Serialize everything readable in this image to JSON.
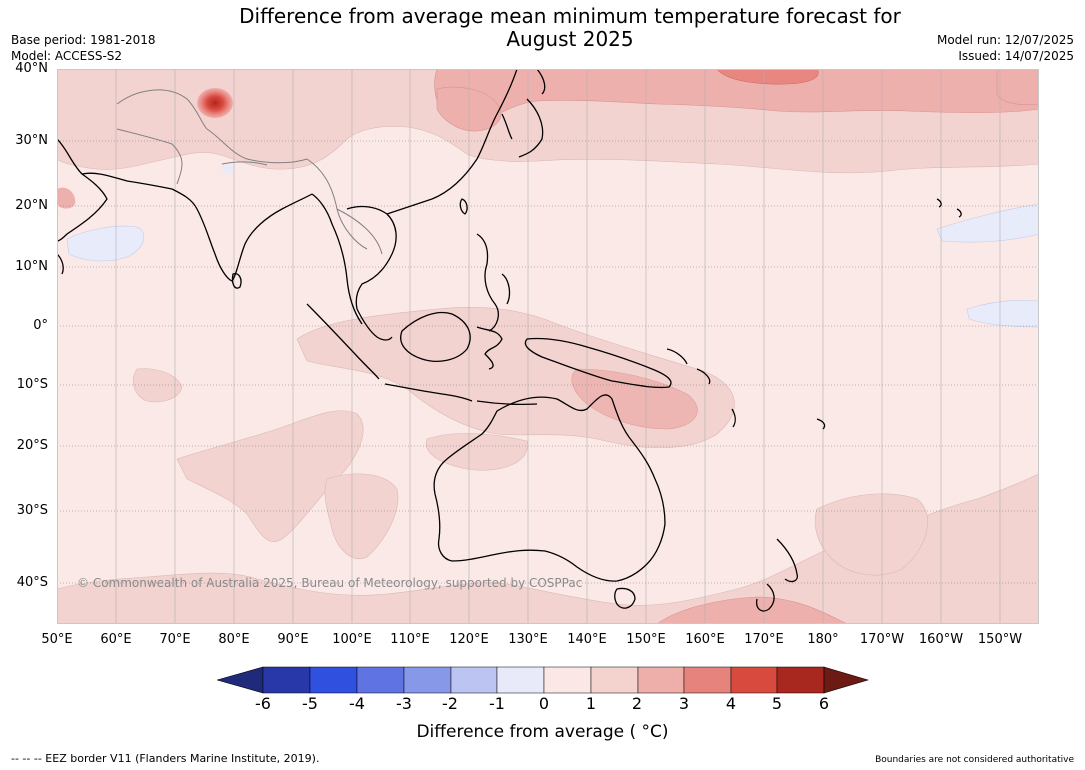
{
  "title": {
    "line1": "Difference from average mean minimum temperature forecast for",
    "line2": "August 2025"
  },
  "meta": {
    "base_period": "Base period: 1981-2018",
    "model": "Model: ACCESS-S2",
    "model_run": "Model run: 12/07/2025",
    "issued": "Issued: 14/07/2025"
  },
  "map": {
    "lat_labels": [
      "40°N",
      "30°N",
      "20°N",
      "10°N",
      "0°",
      "10°S",
      "20°S",
      "30°S",
      "40°S"
    ],
    "lon_labels": [
      "50°E",
      "60°E",
      "70°E",
      "80°E",
      "90°E",
      "100°E",
      "110°E",
      "120°E",
      "130°E",
      "140°E",
      "150°E",
      "160°E",
      "170°E",
      "180°",
      "170°W",
      "160°W",
      "150°W"
    ],
    "copyright": "© Commonwealth of Australia 2025, Bureau of Meteorology, supported by COSPPac",
    "colors": {
      "ocean_base": "#fbe9e7",
      "anomaly_1_2": "#f3d3d0",
      "anomaly_2_3": "#eeb0ad",
      "anomaly_3_4": "#e88680",
      "anomaly_4_5": "#d94a3f",
      "anomaly_minus": "#e8ebfa",
      "coastline": "#000000",
      "border": "#808080"
    }
  },
  "colorbar": {
    "ticks": [
      "-6",
      "-5",
      "-4",
      "-3",
      "-2",
      "-1",
      "0",
      "1",
      "2",
      "3",
      "4",
      "5",
      "6"
    ],
    "label": "Difference from average ( °C)",
    "colors": [
      "#1f2b7a",
      "#2838a8",
      "#3050e0",
      "#5f74e2",
      "#8898e8",
      "#bcc4f2",
      "#e8eaf9",
      "#fbe8e6",
      "#f4d2ce",
      "#eeaeaa",
      "#e6837c",
      "#d94a3e",
      "#a8281f",
      "#6e1a14"
    ]
  },
  "footer": {
    "eez": "--  --  -- EEZ border V11 (Flanders Marine Institute, 2019).",
    "boundaries": "Boundaries are not considered authoritative"
  }
}
